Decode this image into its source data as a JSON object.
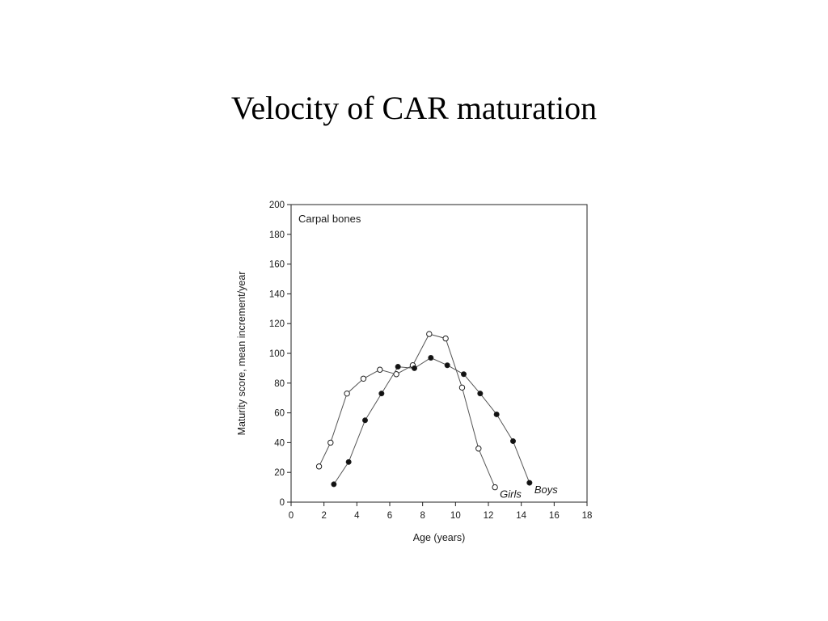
{
  "slide": {
    "title": "Velocity of CAR maturation"
  },
  "chart_data": {
    "type": "line",
    "title": "Carpal bones",
    "xlabel": "Age (years)",
    "ylabel": "Maturity score, mean increment/year",
    "xlim": [
      0,
      18
    ],
    "ylim": [
      0,
      200
    ],
    "x_ticks": [
      0,
      2,
      4,
      6,
      8,
      10,
      12,
      14,
      16,
      18
    ],
    "y_ticks": [
      0,
      20,
      40,
      60,
      80,
      100,
      120,
      140,
      160,
      180,
      200
    ],
    "grid": false,
    "series": [
      {
        "name": "Girls",
        "marker": "open-circle",
        "x": [
          1.7,
          2.4,
          3.4,
          4.4,
          5.4,
          6.4,
          7.4,
          8.4,
          9.4,
          10.4,
          11.4,
          12.4
        ],
        "y": [
          24,
          40,
          73,
          83,
          89,
          86,
          92,
          113,
          110,
          77,
          36,
          10
        ]
      },
      {
        "name": "Boys",
        "marker": "filled-circle",
        "x": [
          2.6,
          3.5,
          4.5,
          5.5,
          6.5,
          7.5,
          8.5,
          9.5,
          10.5,
          11.5,
          12.5,
          13.5,
          14.5
        ],
        "y": [
          12,
          27,
          55,
          73,
          91,
          90,
          97,
          92,
          86,
          73,
          59,
          41,
          13
        ]
      }
    ]
  }
}
